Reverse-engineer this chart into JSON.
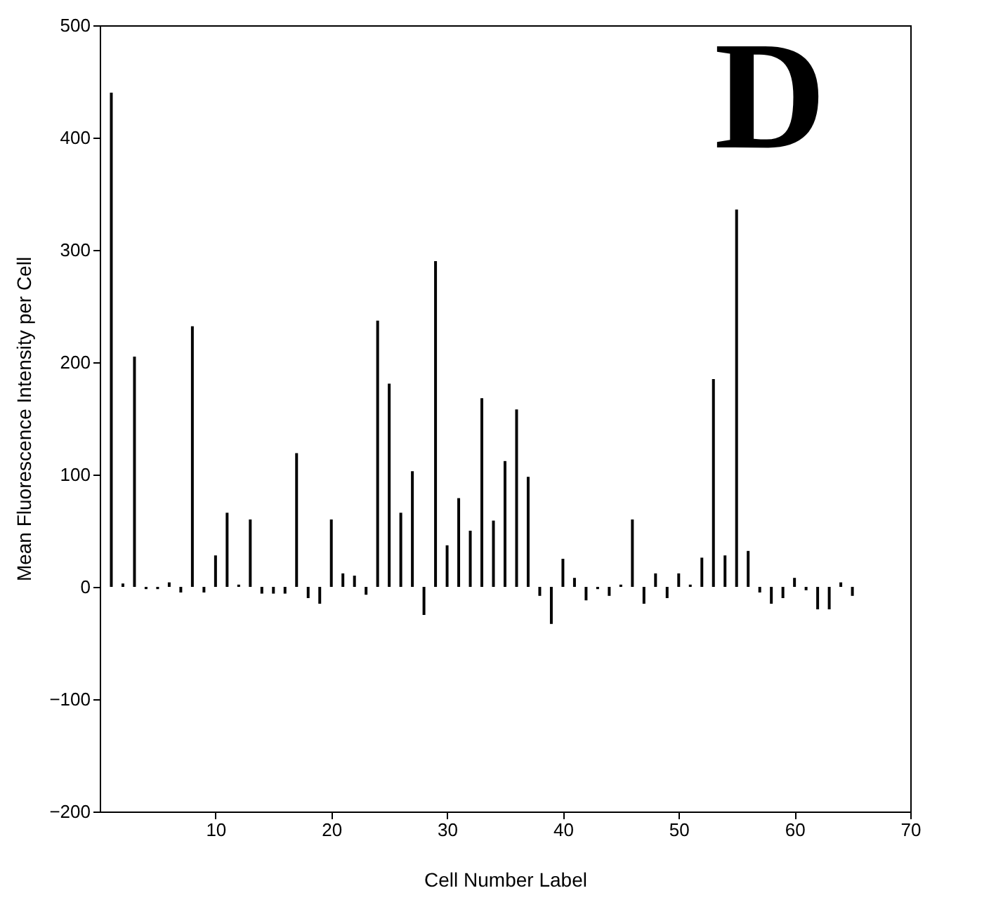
{
  "chart_data": {
    "type": "bar",
    "xlabel": "Cell Number Label",
    "ylabel": "Mean Fluorescence Intensity per Cell",
    "annotations": [
      "D"
    ],
    "x": [
      1,
      2,
      3,
      4,
      5,
      6,
      7,
      8,
      9,
      10,
      11,
      12,
      13,
      14,
      15,
      16,
      17,
      18,
      19,
      20,
      21,
      22,
      23,
      24,
      25,
      26,
      27,
      28,
      29,
      30,
      31,
      32,
      33,
      34,
      35,
      36,
      37,
      38,
      39,
      40,
      41,
      42,
      43,
      44,
      45,
      46,
      47,
      48,
      49,
      50,
      51,
      52,
      53,
      54,
      55,
      56,
      57,
      58,
      59,
      60,
      61,
      62,
      63,
      64,
      65
    ],
    "series": [
      {
        "color": "#000000",
        "values": [
          440,
          3,
          205,
          -2,
          -2,
          4,
          -5,
          232,
          -5,
          28,
          66,
          2,
          60,
          -6,
          -6,
          -6,
          119,
          -10,
          -15,
          60,
          12,
          10,
          -7,
          237,
          181,
          66,
          103,
          -25,
          290,
          37,
          79,
          50,
          168,
          59,
          112,
          158,
          98,
          -8,
          -33,
          25,
          8,
          -12,
          -2,
          -8,
          2,
          60,
          -15,
          12,
          -10,
          12,
          2,
          26,
          185,
          28,
          336,
          32,
          -5,
          -15,
          -10,
          8,
          -3,
          -20,
          -20,
          4,
          -8
        ]
      }
    ],
    "xlim": [
      0,
      70
    ],
    "xticks": [
      10,
      20,
      30,
      40,
      50,
      60,
      70
    ],
    "ylim": [
      -200,
      500
    ],
    "yticks": [
      -200,
      -100,
      0,
      100,
      200,
      300,
      400,
      500
    ],
    "grid": false
  }
}
